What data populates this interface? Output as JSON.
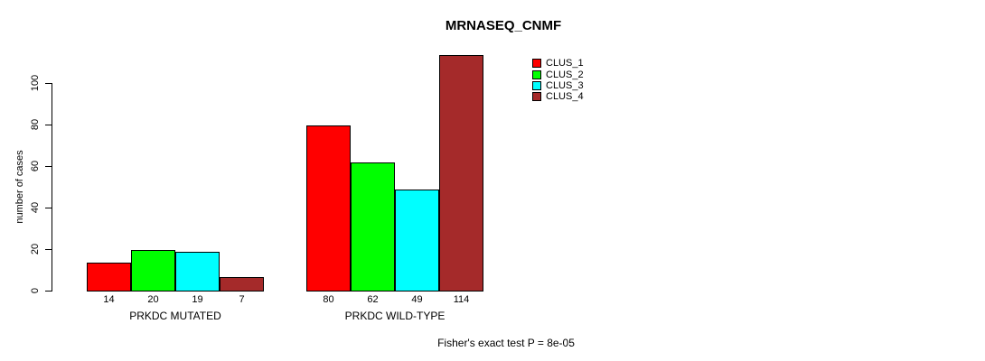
{
  "title": "MRNASEQ_CNMF",
  "chart_data": {
    "type": "bar",
    "title": "MRNASEQ_CNMF",
    "ylabel": "number of cases",
    "yticks": [
      0,
      20,
      40,
      60,
      80,
      100
    ],
    "ylim": [
      0,
      114
    ],
    "grid": false,
    "legend_position": "top-right",
    "categories": [
      "PRKDC MUTATED",
      "PRKDC WILD-TYPE"
    ],
    "series": [
      {
        "name": "CLUS_1",
        "color": "#ff0000",
        "values": [
          14,
          80
        ]
      },
      {
        "name": "CLUS_2",
        "color": "#00ff00",
        "values": [
          20,
          62
        ]
      },
      {
        "name": "CLUS_3",
        "color": "#00ffff",
        "values": [
          19,
          49
        ]
      },
      {
        "name": "CLUS_4",
        "color": "#a52a2a",
        "values": [
          7,
          114
        ]
      }
    ],
    "bar_value_labels": true,
    "footnote": "Fisher's exact test P = 8e-05"
  }
}
